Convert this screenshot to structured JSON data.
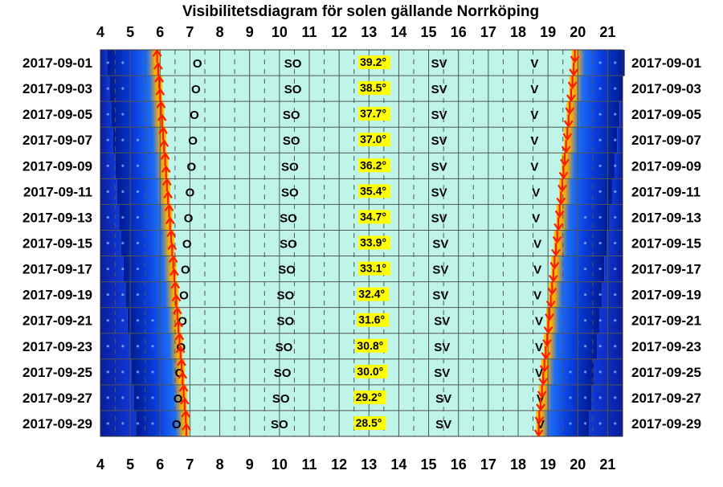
{
  "chart_data": {
    "type": "heatmap",
    "title": "Visibilitetsdiagram för solen gällande Norrköping",
    "x_ticks": [
      "4",
      "5",
      "6",
      "7",
      "8",
      "9",
      "10",
      "11",
      "12",
      "13",
      "14",
      "15",
      "16",
      "17",
      "18",
      "19",
      "20",
      "21"
    ],
    "xlim": [
      4,
      21.5
    ],
    "date_labels": [
      "2017-09-01",
      "2017-09-03",
      "2017-09-05",
      "2017-09-07",
      "2017-09-09",
      "2017-09-11",
      "2017-09-13",
      "2017-09-15",
      "2017-09-17",
      "2017-09-19",
      "2017-09-21",
      "2017-09-23",
      "2017-09-25",
      "2017-09-27",
      "2017-09-29"
    ],
    "rows": [
      {
        "date": "2017-09-01",
        "sunrise": 5.9,
        "sunset": 19.9,
        "altitude": "39.2°",
        "o": 7.25,
        "so": 10.45,
        "sv": 15.35,
        "v": 18.55,
        "alt_pos": 12.7
      },
      {
        "date": "2017-09-03",
        "sunrise": 5.97,
        "sunset": 19.82,
        "altitude": "38.5°",
        "o": 7.2,
        "so": 10.45,
        "sv": 15.35,
        "v": 18.55,
        "alt_pos": 12.7
      },
      {
        "date": "2017-09-05",
        "sunrise": 6.03,
        "sunset": 19.73,
        "altitude": "37.7°",
        "o": 7.15,
        "so": 10.4,
        "sv": 15.35,
        "v": 18.55,
        "alt_pos": 12.7
      },
      {
        "date": "2017-09-07",
        "sunrise": 6.1,
        "sunset": 19.65,
        "altitude": "37.0°",
        "o": 7.1,
        "so": 10.4,
        "sv": 15.35,
        "v": 18.55,
        "alt_pos": 12.7
      },
      {
        "date": "2017-09-09",
        "sunrise": 6.17,
        "sunset": 19.56,
        "altitude": "36.2°",
        "o": 7.05,
        "so": 10.35,
        "sv": 15.35,
        "v": 18.55,
        "alt_pos": 12.7
      },
      {
        "date": "2017-09-11",
        "sunrise": 6.23,
        "sunset": 19.48,
        "altitude": "35.4°",
        "o": 7.0,
        "so": 10.35,
        "sv": 15.35,
        "v": 18.6,
        "alt_pos": 12.7
      },
      {
        "date": "2017-09-13",
        "sunrise": 6.3,
        "sunset": 19.39,
        "altitude": "34.7°",
        "o": 6.95,
        "so": 10.3,
        "sv": 15.35,
        "v": 18.6,
        "alt_pos": 12.7
      },
      {
        "date": "2017-09-15",
        "sunrise": 6.37,
        "sunset": 19.31,
        "altitude": "33.9°",
        "o": 6.9,
        "so": 10.3,
        "sv": 15.4,
        "v": 18.65,
        "alt_pos": 12.7
      },
      {
        "date": "2017-09-17",
        "sunrise": 6.44,
        "sunset": 19.22,
        "altitude": "33.1°",
        "o": 6.85,
        "so": 10.25,
        "sv": 15.4,
        "v": 18.65,
        "alt_pos": 12.7
      },
      {
        "date": "2017-09-19",
        "sunrise": 6.51,
        "sunset": 19.14,
        "altitude": "32.4°",
        "o": 6.8,
        "so": 10.2,
        "sv": 15.4,
        "v": 18.65,
        "alt_pos": 12.65
      },
      {
        "date": "2017-09-21",
        "sunrise": 6.58,
        "sunset": 19.05,
        "altitude": "31.6°",
        "o": 6.75,
        "so": 10.2,
        "sv": 15.45,
        "v": 18.7,
        "alt_pos": 12.65
      },
      {
        "date": "2017-09-23",
        "sunrise": 6.65,
        "sunset": 18.97,
        "altitude": "30.8°",
        "o": 6.7,
        "so": 10.15,
        "sv": 15.45,
        "v": 18.7,
        "alt_pos": 12.6
      },
      {
        "date": "2017-09-25",
        "sunrise": 6.72,
        "sunset": 18.88,
        "altitude": "30.0°",
        "o": 6.65,
        "so": 10.1,
        "sv": 15.45,
        "v": 18.7,
        "alt_pos": 12.6
      },
      {
        "date": "2017-09-27",
        "sunrise": 6.79,
        "sunset": 18.8,
        "altitude": "29.2°",
        "o": 6.6,
        "so": 10.05,
        "sv": 15.5,
        "v": 18.75,
        "alt_pos": 12.55
      },
      {
        "date": "2017-09-29",
        "sunrise": 6.86,
        "sunset": 18.71,
        "altitude": "28.5°",
        "o": 6.55,
        "so": 10.0,
        "sv": 15.5,
        "v": 18.75,
        "alt_pos": 12.55
      }
    ],
    "direction_labels": {
      "o": "O",
      "so": "SO",
      "sv": "SV",
      "v": "V"
    },
    "colors": {
      "day": "#bff5e8",
      "night": "#0a2ab8",
      "night_edge": "#0044ff",
      "twilight": "#ffb000",
      "arrow": "#ff1a00",
      "altitude_box": "#ffff00",
      "grid": "#555555"
    }
  }
}
